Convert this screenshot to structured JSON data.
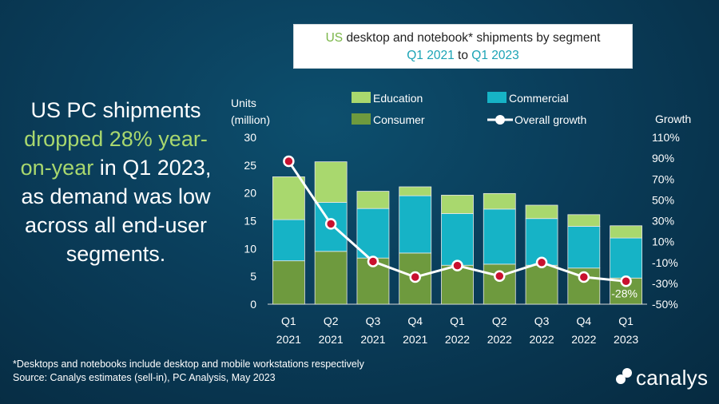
{
  "headline": {
    "part1": "US PC shipments",
    "highlight": "dropped 28% year-on-year",
    "part2": "in Q1 2023, as demand was low across all end-user segments."
  },
  "title_box": {
    "line1_green": "US",
    "line1_rest": "desktop and notebook* shipments by segment",
    "line2_from": "Q1 2021",
    "line2_to_word": "to",
    "line2_to": "Q1 2023"
  },
  "footnote": {
    "line1": "*Desktops and notebooks include desktop and mobile workstations respectively",
    "line2": "Source: Canalys estimates (sell-in), PC Analysis, May 2023"
  },
  "logo": {
    "text": "canalys"
  },
  "colors": {
    "education": "#a9d86e",
    "commercial": "#16b3c6",
    "consumer": "#6e9a3e",
    "growth_line": "#ffffff",
    "growth_marker": "#c8102e"
  },
  "chart_data": {
    "type": "bar",
    "stacked": true,
    "categories": [
      [
        "Q1",
        "2021"
      ],
      [
        "Q2",
        "2021"
      ],
      [
        "Q3",
        "2021"
      ],
      [
        "Q4",
        "2021"
      ],
      [
        "Q1",
        "2022"
      ],
      [
        "Q2",
        "2022"
      ],
      [
        "Q3",
        "2022"
      ],
      [
        "Q4",
        "2022"
      ],
      [
        "Q1",
        "2023"
      ]
    ],
    "series": [
      {
        "name": "Consumer",
        "color_key": "consumer",
        "values": [
          7.8,
          9.5,
          8.3,
          9.2,
          7.0,
          7.2,
          7.0,
          6.5,
          4.7
        ]
      },
      {
        "name": "Commercial",
        "color_key": "commercial",
        "values": [
          7.4,
          8.8,
          8.9,
          10.3,
          9.3,
          9.9,
          8.4,
          7.5,
          7.2
        ]
      },
      {
        "name": "Education",
        "color_key": "education",
        "values": [
          7.7,
          7.3,
          3.1,
          1.6,
          3.3,
          2.8,
          2.4,
          2.1,
          2.2
        ]
      }
    ],
    "growth": {
      "name": "Overall growth",
      "values": [
        87,
        27,
        -9,
        -24,
        -13,
        -23,
        -10,
        -24,
        -28
      ],
      "labeled_value": "-28%"
    },
    "ylabel_left": [
      "Units",
      "(million)"
    ],
    "ylabel_right": "Growth",
    "ylim_left": [
      0,
      30
    ],
    "yticks_left": [
      0,
      5,
      10,
      15,
      20,
      25,
      30
    ],
    "ylim_right": [
      -50,
      110
    ],
    "yticks_right": [
      "-50%",
      "-30%",
      "-10%",
      "10%",
      "30%",
      "50%",
      "70%",
      "90%",
      "110%"
    ],
    "legend": [
      "Education",
      "Commercial",
      "Consumer",
      "Overall growth"
    ],
    "grid": false
  }
}
